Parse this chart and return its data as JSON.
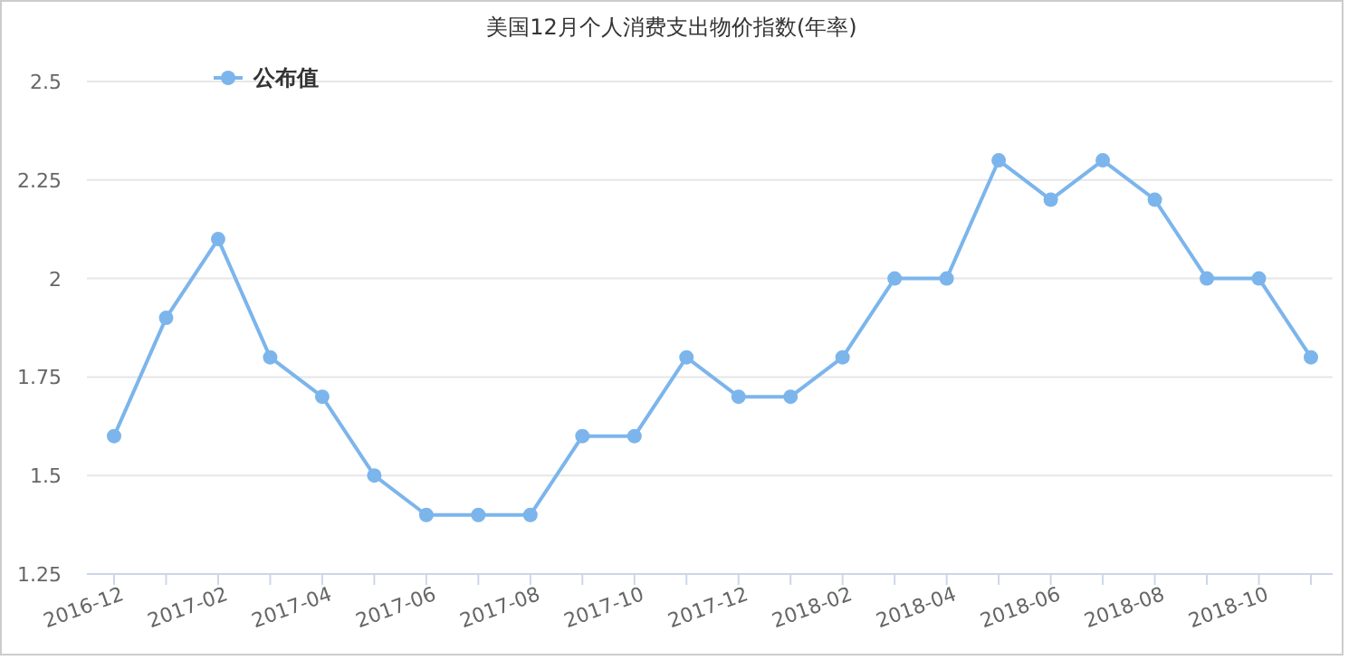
{
  "chart_data": {
    "type": "line",
    "title": "美国12月个人消费支出物价指数(年率)",
    "categories": [
      "2016-12",
      null,
      "2017-02",
      null,
      "2017-04",
      null,
      "2017-06",
      null,
      "2017-08",
      null,
      "2017-10",
      null,
      "2017-12",
      null,
      "2018-02",
      null,
      "2018-04",
      null,
      "2018-06",
      null,
      "2018-08",
      null,
      "2018-10",
      null
    ],
    "series": [
      {
        "name": "公布值",
        "color": "#7cb5ec",
        "values": [
          1.6,
          1.9,
          2.1,
          1.8,
          1.7,
          1.5,
          1.4,
          1.4,
          1.4,
          1.6,
          1.6,
          1.8,
          1.7,
          1.7,
          1.8,
          2.0,
          2.0,
          2.3,
          2.2,
          2.3,
          2.2,
          2.0,
          2.0,
          1.8
        ]
      }
    ],
    "ylim": [
      1.25,
      2.5
    ],
    "yticks": [
      1.25,
      1.5,
      1.75,
      2,
      2.25,
      2.5
    ],
    "grid": "y",
    "legend": "top left",
    "marker": "circle",
    "line_style": "solid"
  }
}
